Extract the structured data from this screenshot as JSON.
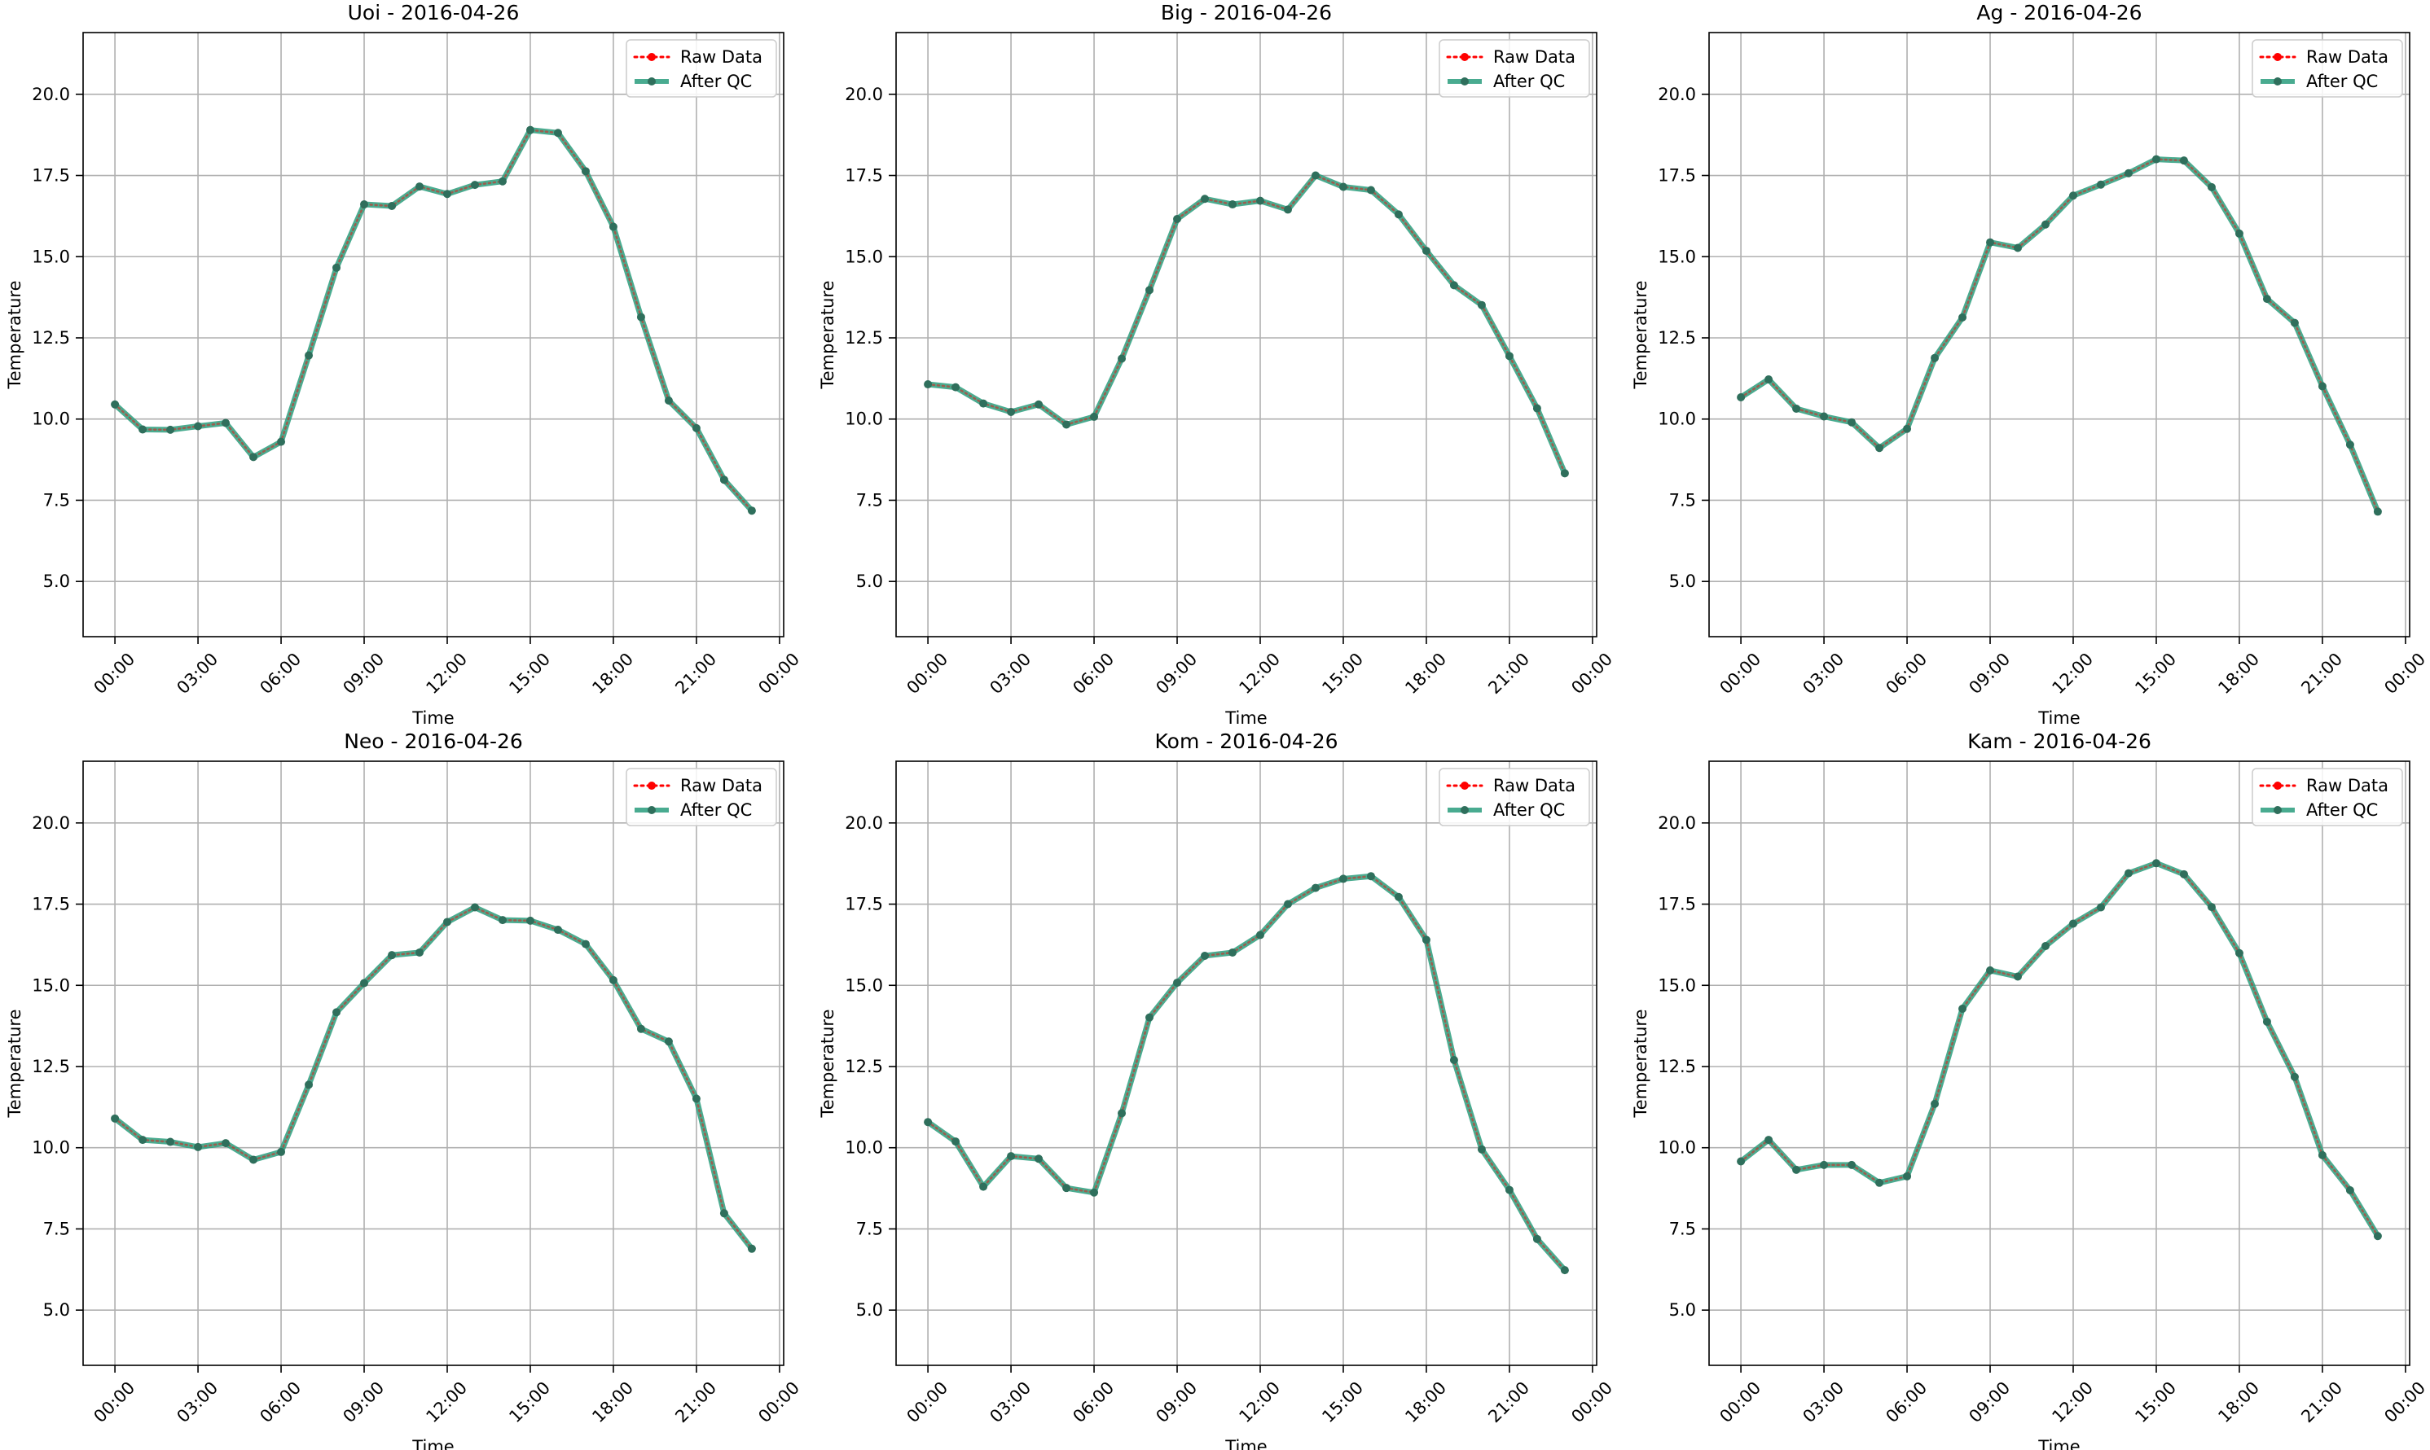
{
  "colors": {
    "raw": "#ff0000",
    "qc": "#2a9d7d",
    "grid": "#b0b0b0",
    "axis": "#000000"
  },
  "legend": {
    "raw_label": "Raw Data",
    "qc_label": "After QC"
  },
  "chart_data": [
    {
      "type": "line",
      "title": "Uoi - 2016-04-26",
      "xlabel": "Time",
      "ylabel": "Temperature",
      "xticks": [
        "00:00",
        "03:00",
        "06:00",
        "09:00",
        "12:00",
        "15:00",
        "18:00",
        "21:00",
        "00:00"
      ],
      "yticks": [
        "5.0",
        "7.5",
        "10.0",
        "12.5",
        "15.0",
        "17.5",
        "20.0"
      ],
      "xlim_hours": [
        -1.15,
        24.15
      ],
      "ylim": [
        3.3,
        21.9
      ],
      "grid": true,
      "legend_position": "upper right",
      "x_hours": [
        0,
        1,
        2,
        3,
        4,
        5,
        6,
        7,
        8,
        9,
        10,
        11,
        12,
        13,
        14,
        15,
        16,
        17,
        18,
        19,
        20,
        21,
        22,
        23
      ],
      "series": [
        {
          "name": "Raw Data",
          "values": [
            10.45,
            9.68,
            9.67,
            9.78,
            9.88,
            8.83,
            9.3,
            11.96,
            14.66,
            16.61,
            16.56,
            17.16,
            16.93,
            17.21,
            17.32,
            18.9,
            18.81,
            17.63,
            15.92,
            13.14,
            10.57,
            9.72,
            8.13,
            7.18
          ]
        },
        {
          "name": "After QC",
          "values": [
            10.45,
            9.68,
            9.67,
            9.78,
            9.88,
            8.83,
            9.3,
            11.96,
            14.66,
            16.61,
            16.56,
            17.16,
            16.93,
            17.21,
            17.32,
            18.9,
            18.81,
            17.63,
            15.92,
            13.14,
            10.57,
            9.72,
            8.13,
            7.18
          ]
        }
      ]
    },
    {
      "type": "line",
      "title": "Big - 2016-04-26",
      "xlabel": "Time",
      "ylabel": "Temperature",
      "xticks": [
        "00:00",
        "03:00",
        "06:00",
        "09:00",
        "12:00",
        "15:00",
        "18:00",
        "21:00",
        "00:00"
      ],
      "yticks": [
        "5.0",
        "7.5",
        "10.0",
        "12.5",
        "15.0",
        "17.5",
        "20.0"
      ],
      "xlim_hours": [
        -1.15,
        24.15
      ],
      "ylim": [
        3.3,
        21.9
      ],
      "grid": true,
      "legend_position": "upper right",
      "x_hours": [
        0,
        1,
        2,
        3,
        4,
        5,
        6,
        7,
        8,
        9,
        10,
        11,
        12,
        13,
        14,
        15,
        16,
        17,
        18,
        19,
        20,
        21,
        22,
        23
      ],
      "series": [
        {
          "name": "Raw Data",
          "values": [
            11.07,
            10.98,
            10.48,
            10.22,
            10.45,
            9.83,
            10.07,
            11.86,
            13.97,
            16.16,
            16.78,
            16.61,
            16.72,
            16.45,
            17.5,
            17.15,
            17.05,
            16.3,
            15.18,
            14.12,
            13.51,
            11.94,
            10.33,
            8.33
          ]
        },
        {
          "name": "After QC",
          "values": [
            11.07,
            10.98,
            10.48,
            10.22,
            10.45,
            9.83,
            10.07,
            11.86,
            13.97,
            16.16,
            16.78,
            16.61,
            16.72,
            16.45,
            17.5,
            17.15,
            17.05,
            16.3,
            15.18,
            14.12,
            13.51,
            11.94,
            10.33,
            8.33
          ]
        }
      ]
    },
    {
      "type": "line",
      "title": "Ag - 2016-04-26",
      "xlabel": "Time",
      "ylabel": "Temperature",
      "xticks": [
        "00:00",
        "03:00",
        "06:00",
        "09:00",
        "12:00",
        "15:00",
        "18:00",
        "21:00",
        "00:00"
      ],
      "yticks": [
        "5.0",
        "7.5",
        "10.0",
        "12.5",
        "15.0",
        "17.5",
        "20.0"
      ],
      "xlim_hours": [
        -1.15,
        24.15
      ],
      "ylim": [
        3.3,
        21.9
      ],
      "grid": true,
      "legend_position": "upper right",
      "x_hours": [
        0,
        1,
        2,
        3,
        4,
        5,
        6,
        7,
        8,
        9,
        10,
        11,
        12,
        13,
        14,
        15,
        16,
        17,
        18,
        19,
        20,
        21,
        22,
        23
      ],
      "series": [
        {
          "name": "Raw Data",
          "values": [
            10.67,
            11.22,
            10.32,
            10.08,
            9.9,
            9.11,
            9.7,
            11.88,
            13.13,
            15.44,
            15.27,
            15.99,
            16.88,
            17.22,
            17.57,
            18.0,
            17.96,
            17.14,
            15.71,
            13.7,
            12.96,
            11.01,
            9.21,
            7.15
          ]
        },
        {
          "name": "After QC",
          "values": [
            10.67,
            11.22,
            10.32,
            10.08,
            9.9,
            9.11,
            9.7,
            11.88,
            13.13,
            15.44,
            15.27,
            15.99,
            16.88,
            17.22,
            17.57,
            18.0,
            17.96,
            17.14,
            15.71,
            13.7,
            12.96,
            11.01,
            9.21,
            7.15
          ]
        }
      ]
    },
    {
      "type": "line",
      "title": "Neo - 2016-04-26",
      "xlabel": "Time",
      "ylabel": "Temperature",
      "xticks": [
        "00:00",
        "03:00",
        "06:00",
        "09:00",
        "12:00",
        "15:00",
        "18:00",
        "21:00",
        "00:00"
      ],
      "yticks": [
        "5.0",
        "7.5",
        "10.0",
        "12.5",
        "15.0",
        "17.5",
        "20.0"
      ],
      "xlim_hours": [
        -1.15,
        24.15
      ],
      "ylim": [
        3.3,
        21.9
      ],
      "grid": true,
      "legend_position": "upper right",
      "x_hours": [
        0,
        1,
        2,
        3,
        4,
        5,
        6,
        7,
        8,
        9,
        10,
        11,
        12,
        13,
        14,
        15,
        16,
        17,
        18,
        19,
        20,
        21,
        22,
        23
      ],
      "series": [
        {
          "name": "Raw Data",
          "values": [
            10.9,
            10.24,
            10.18,
            10.02,
            10.14,
            9.63,
            9.87,
            11.94,
            14.17,
            15.07,
            15.93,
            16.01,
            16.95,
            17.4,
            17.01,
            16.99,
            16.71,
            16.27,
            15.16,
            13.66,
            13.27,
            11.51,
            7.98,
            6.89
          ]
        },
        {
          "name": "After QC",
          "values": [
            10.9,
            10.24,
            10.18,
            10.02,
            10.14,
            9.63,
            9.87,
            11.94,
            14.17,
            15.07,
            15.93,
            16.01,
            16.95,
            17.4,
            17.01,
            16.99,
            16.71,
            16.27,
            15.16,
            13.66,
            13.27,
            11.51,
            7.98,
            6.89
          ]
        }
      ]
    },
    {
      "type": "line",
      "title": "Kom - 2016-04-26",
      "xlabel": "Time",
      "ylabel": "Temperature",
      "xticks": [
        "00:00",
        "03:00",
        "06:00",
        "09:00",
        "12:00",
        "15:00",
        "18:00",
        "21:00",
        "00:00"
      ],
      "yticks": [
        "5.0",
        "7.5",
        "10.0",
        "12.5",
        "15.0",
        "17.5",
        "20.0"
      ],
      "xlim_hours": [
        -1.15,
        24.15
      ],
      "ylim": [
        3.3,
        21.9
      ],
      "grid": true,
      "legend_position": "upper right",
      "x_hours": [
        0,
        1,
        2,
        3,
        4,
        5,
        6,
        7,
        8,
        9,
        10,
        11,
        12,
        13,
        14,
        15,
        16,
        17,
        18,
        19,
        20,
        21,
        22,
        23
      ],
      "series": [
        {
          "name": "Raw Data",
          "values": [
            10.79,
            10.19,
            8.8,
            9.74,
            9.66,
            8.76,
            8.62,
            11.06,
            14.01,
            15.08,
            15.91,
            16.01,
            16.55,
            17.5,
            18.0,
            18.28,
            18.36,
            17.72,
            16.4,
            12.7,
            9.95,
            8.7,
            7.19,
            6.23
          ]
        },
        {
          "name": "After QC",
          "values": [
            10.79,
            10.19,
            8.8,
            9.74,
            9.66,
            8.76,
            8.62,
            11.06,
            14.01,
            15.08,
            15.91,
            16.01,
            16.55,
            17.5,
            18.0,
            18.28,
            18.36,
            17.72,
            16.4,
            12.7,
            9.95,
            8.7,
            7.19,
            6.23
          ]
        }
      ]
    },
    {
      "type": "line",
      "title": "Kam - 2016-04-26",
      "xlabel": "Time",
      "ylabel": "Temperature",
      "xticks": [
        "00:00",
        "03:00",
        "06:00",
        "09:00",
        "12:00",
        "15:00",
        "18:00",
        "21:00",
        "00:00"
      ],
      "yticks": [
        "5.0",
        "7.5",
        "10.0",
        "12.5",
        "15.0",
        "17.5",
        "20.0"
      ],
      "xlim_hours": [
        -1.15,
        24.15
      ],
      "ylim": [
        3.3,
        21.9
      ],
      "grid": true,
      "legend_position": "upper right",
      "x_hours": [
        0,
        1,
        2,
        3,
        4,
        5,
        6,
        7,
        8,
        9,
        10,
        11,
        12,
        13,
        14,
        15,
        16,
        17,
        18,
        19,
        20,
        21,
        22,
        23
      ],
      "series": [
        {
          "name": "Raw Data",
          "values": [
            9.58,
            10.24,
            9.32,
            9.47,
            9.47,
            8.92,
            9.12,
            11.35,
            14.28,
            15.46,
            15.27,
            16.21,
            16.9,
            17.4,
            18.45,
            18.76,
            18.42,
            17.41,
            15.99,
            13.88,
            12.18,
            9.77,
            8.69,
            7.28
          ]
        },
        {
          "name": "After QC",
          "values": [
            9.58,
            10.24,
            9.32,
            9.47,
            9.47,
            8.92,
            9.12,
            11.35,
            14.28,
            15.46,
            15.27,
            16.21,
            16.9,
            17.4,
            18.45,
            18.76,
            18.42,
            17.41,
            15.99,
            13.88,
            12.18,
            9.77,
            8.69,
            7.28
          ]
        }
      ]
    }
  ]
}
